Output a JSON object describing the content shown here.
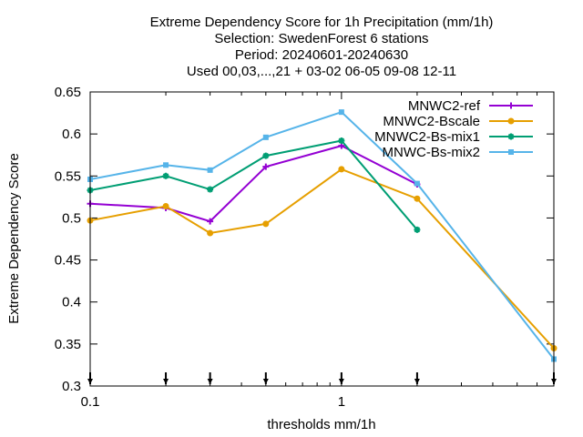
{
  "chart_data": {
    "type": "line",
    "title_lines": [
      "Extreme Dependency Score  for 1h Precipitation (mm/1h)",
      "Selection: SwedenForest      6 stations",
      "Period: 20240601-20240630",
      "Used 00,03,...,21 + 03-02 06-05 09-08 12-11"
    ],
    "xlabel": "thresholds mm/1h",
    "ylabel": "Extreme Dependency Score",
    "x_scale": "log",
    "xlim": [
      0.1,
      7
    ],
    "ylim": [
      0.3,
      0.65
    ],
    "x_tick_labels": [
      {
        "value": 0.1,
        "label": "0.1"
      },
      {
        "value": 1,
        "label": "1"
      }
    ],
    "y_ticks": [
      {
        "value": 0.3,
        "label": "0.3"
      },
      {
        "value": 0.35,
        "label": "0.35"
      },
      {
        "value": 0.4,
        "label": "0.4"
      },
      {
        "value": 0.45,
        "label": "0.45"
      },
      {
        "value": 0.5,
        "label": "0.5"
      },
      {
        "value": 0.55,
        "label": "0.55"
      },
      {
        "value": 0.6,
        "label": "0.6"
      },
      {
        "value": 0.65,
        "label": "0.65"
      }
    ],
    "threshold_markers": [
      0.1,
      0.2,
      0.3,
      0.5,
      1,
      2,
      7
    ],
    "grid": false,
    "legend_position": "top-right",
    "series": [
      {
        "name": "MNWC2-ref",
        "color": "#9400d3",
        "marker": "plus",
        "x": [
          0.1,
          0.2,
          0.3,
          0.5,
          1,
          2
        ],
        "y": [
          0.517,
          0.512,
          0.496,
          0.561,
          0.586,
          0.54
        ]
      },
      {
        "name": "MNWC2-Bscale",
        "color": "#e69f00",
        "marker": "circle",
        "x": [
          0.1,
          0.2,
          0.3,
          0.5,
          1,
          2,
          7
        ],
        "y": [
          0.497,
          0.514,
          0.482,
          0.493,
          0.558,
          0.523,
          0.345
        ]
      },
      {
        "name": "MNWC2-Bs-mix1",
        "color": "#009e73",
        "marker": "star",
        "x": [
          0.1,
          0.2,
          0.3,
          0.5,
          1,
          2
        ],
        "y": [
          0.533,
          0.55,
          0.534,
          0.574,
          0.592,
          0.486
        ]
      },
      {
        "name": "MNWC-Bs-mix2",
        "color": "#56b4e9",
        "marker": "square",
        "x": [
          0.1,
          0.2,
          0.3,
          0.5,
          1,
          2,
          7
        ],
        "y": [
          0.546,
          0.563,
          0.557,
          0.596,
          0.626,
          0.541,
          0.332
        ]
      }
    ]
  }
}
